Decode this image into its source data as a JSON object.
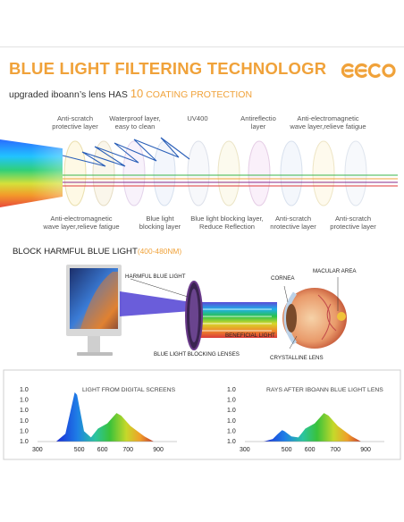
{
  "header": {
    "title": "BLUE LIGHT FILTERING TECHNOLOGR",
    "subtitle_prefix": "upgraded iboann’s lens HAS",
    "subtitle_number": "10",
    "subtitle_suffix": "COATING PROTECTION",
    "logo_text": "eeeo",
    "accent_color": "#f0a23a"
  },
  "layers": {
    "top_labels": [
      "Anti-scratch\nprotective layer",
      "Waterproof layer,\neasy to clean",
      "UV400",
      "Antireflectio\nlayer",
      "Anti-electromagnetic\nwave layer,relieve fatigue"
    ],
    "bottom_labels": [
      "Anti-electromagnetic\nwave layer,relieve fatigue",
      "Blue light\nblocking layer",
      "Blue light blocking layer,\nReduce Reflection",
      "Anti-scratch\nnrotective layer",
      "Anti-scratch\nprotective layer"
    ]
  },
  "section2": {
    "title": "BLOCK HARMFUL BLUE LIGHT",
    "range": "(400-480NM)",
    "harmful": "HARMFUL BLUE LIGHT",
    "blocking_lenses": "BLUE LIGHT BLOCKING LENSES",
    "beneficial": "BENEFICIAL LIGHT",
    "cornea": "CORNEA",
    "macular": "MACULAR AREA",
    "crystalline": "CRYSTALLINE LENS"
  },
  "charts": {
    "y_ticks": [
      "1.0",
      "1.0",
      "1.0",
      "1.0",
      "1.0",
      "1.0"
    ],
    "x_ticks": [
      "300",
      "500",
      "600",
      "700",
      "900"
    ],
    "left_title": "LIGHT FROM DIGITAL SCREENS",
    "right_title": "RAYS AFTER IBOANN BLUE LIGHT LENS"
  },
  "chart_data": [
    {
      "type": "area",
      "title": "LIGHT FROM DIGITAL SCREENS",
      "x": [
        380,
        420,
        440,
        460,
        470,
        500,
        530,
        560,
        600,
        640,
        660,
        700,
        760,
        800
      ],
      "y": [
        0,
        0.15,
        0.55,
        0.95,
        0.9,
        0.2,
        0.08,
        0.25,
        0.35,
        0.55,
        0.5,
        0.3,
        0.1,
        0
      ],
      "yticks": [
        "1.0",
        "1.0",
        "1.0",
        "1.0",
        "1.0",
        "1.0"
      ],
      "xticks": [
        "300",
        "500",
        "600",
        "700",
        "900"
      ],
      "xlim": [
        300,
        900
      ]
    },
    {
      "type": "area",
      "title": "RAYS AFTER IBOANN BLUE LIGHT LENS",
      "x": [
        380,
        420,
        440,
        460,
        470,
        500,
        530,
        560,
        600,
        640,
        660,
        700,
        760,
        800
      ],
      "y": [
        0,
        0.05,
        0.14,
        0.22,
        0.2,
        0.1,
        0.08,
        0.25,
        0.35,
        0.55,
        0.5,
        0.3,
        0.1,
        0
      ],
      "yticks": [
        "1.0",
        "1.0",
        "1.0",
        "1.0",
        "1.0",
        "1.0"
      ],
      "xticks": [
        "300",
        "500",
        "600",
        "700",
        "900"
      ],
      "xlim": [
        300,
        900
      ]
    }
  ]
}
